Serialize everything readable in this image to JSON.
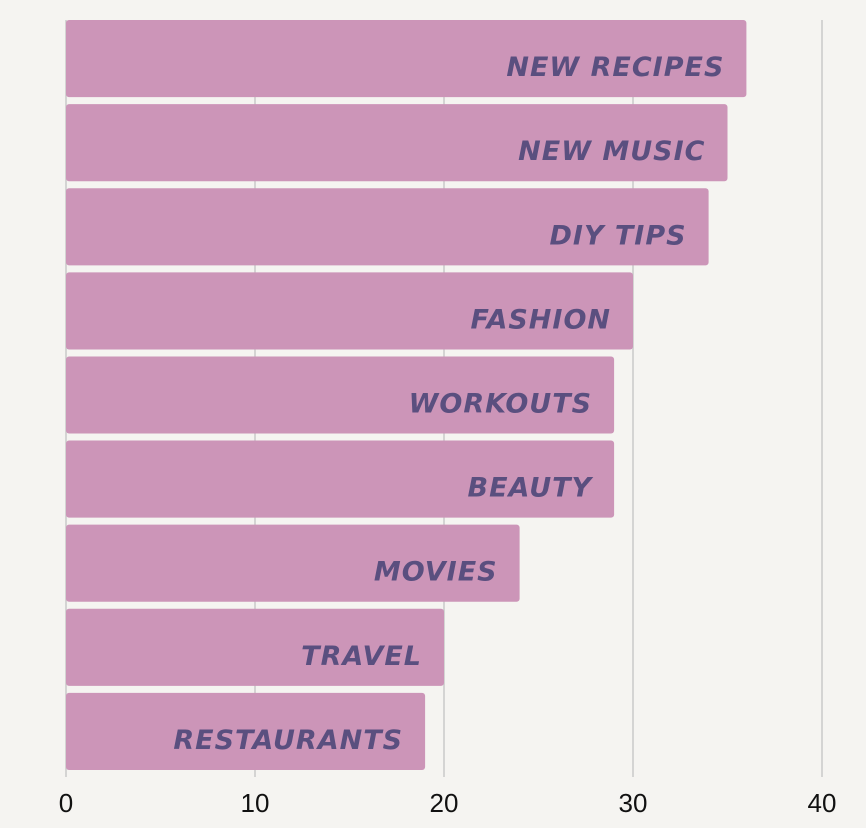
{
  "chart_data": {
    "type": "barh",
    "categories": [
      "NEW RECIPES",
      "NEW MUSIC",
      "DIY TIPS",
      "FASHION",
      "WORKOUTS",
      "BEAUTY",
      "MOVIES",
      "TRAVEL",
      "RESTAURANTS"
    ],
    "values": [
      36,
      35,
      34,
      30,
      29,
      29,
      24,
      20,
      19
    ],
    "color": "#cc95b8",
    "label_color": "#5a4f7f",
    "xlim": [
      0,
      40
    ],
    "xticks": [
      0,
      10,
      20,
      30,
      40
    ],
    "grid": true
  }
}
